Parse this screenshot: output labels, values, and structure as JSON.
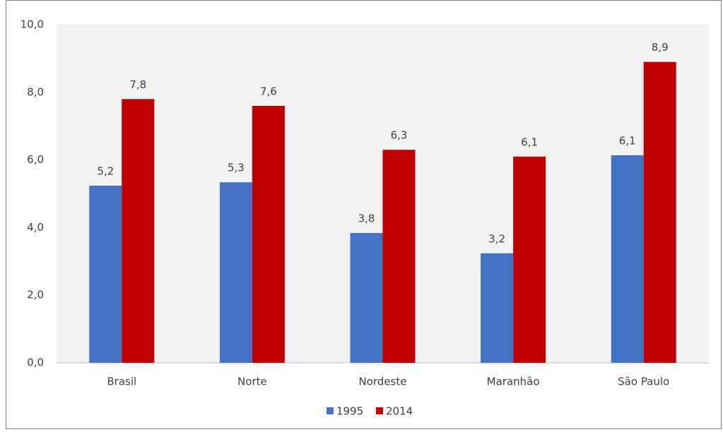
{
  "chart_data": {
    "type": "bar",
    "categories": [
      "Brasil",
      "Norte",
      "Nordeste",
      "Maranhão",
      "São Paulo"
    ],
    "series": [
      {
        "name": "1995",
        "color": "#4472c4",
        "values": [
          5.24,
          5.34,
          3.84,
          3.24,
          6.14
        ],
        "value_labels": [
          "5,2",
          "5,3",
          "3,8",
          "3,2",
          "6,1"
        ]
      },
      {
        "name": "2014",
        "color": "#c00000",
        "values": [
          7.8,
          7.6,
          6.3,
          6.1,
          8.9
        ],
        "value_labels": [
          "7,8",
          "7,6",
          "6,3",
          "6,1",
          "8,9"
        ]
      }
    ],
    "ylim": [
      0,
      10
    ],
    "yticks": [
      {
        "value": 0,
        "label": "0,0"
      },
      {
        "value": 2,
        "label": "2,0"
      },
      {
        "value": 4,
        "label": "4,0"
      },
      {
        "value": 6,
        "label": "6,0"
      },
      {
        "value": 8,
        "label": "8,0"
      },
      {
        "value": 10,
        "label": "10,0"
      }
    ],
    "legend": "bottom"
  }
}
